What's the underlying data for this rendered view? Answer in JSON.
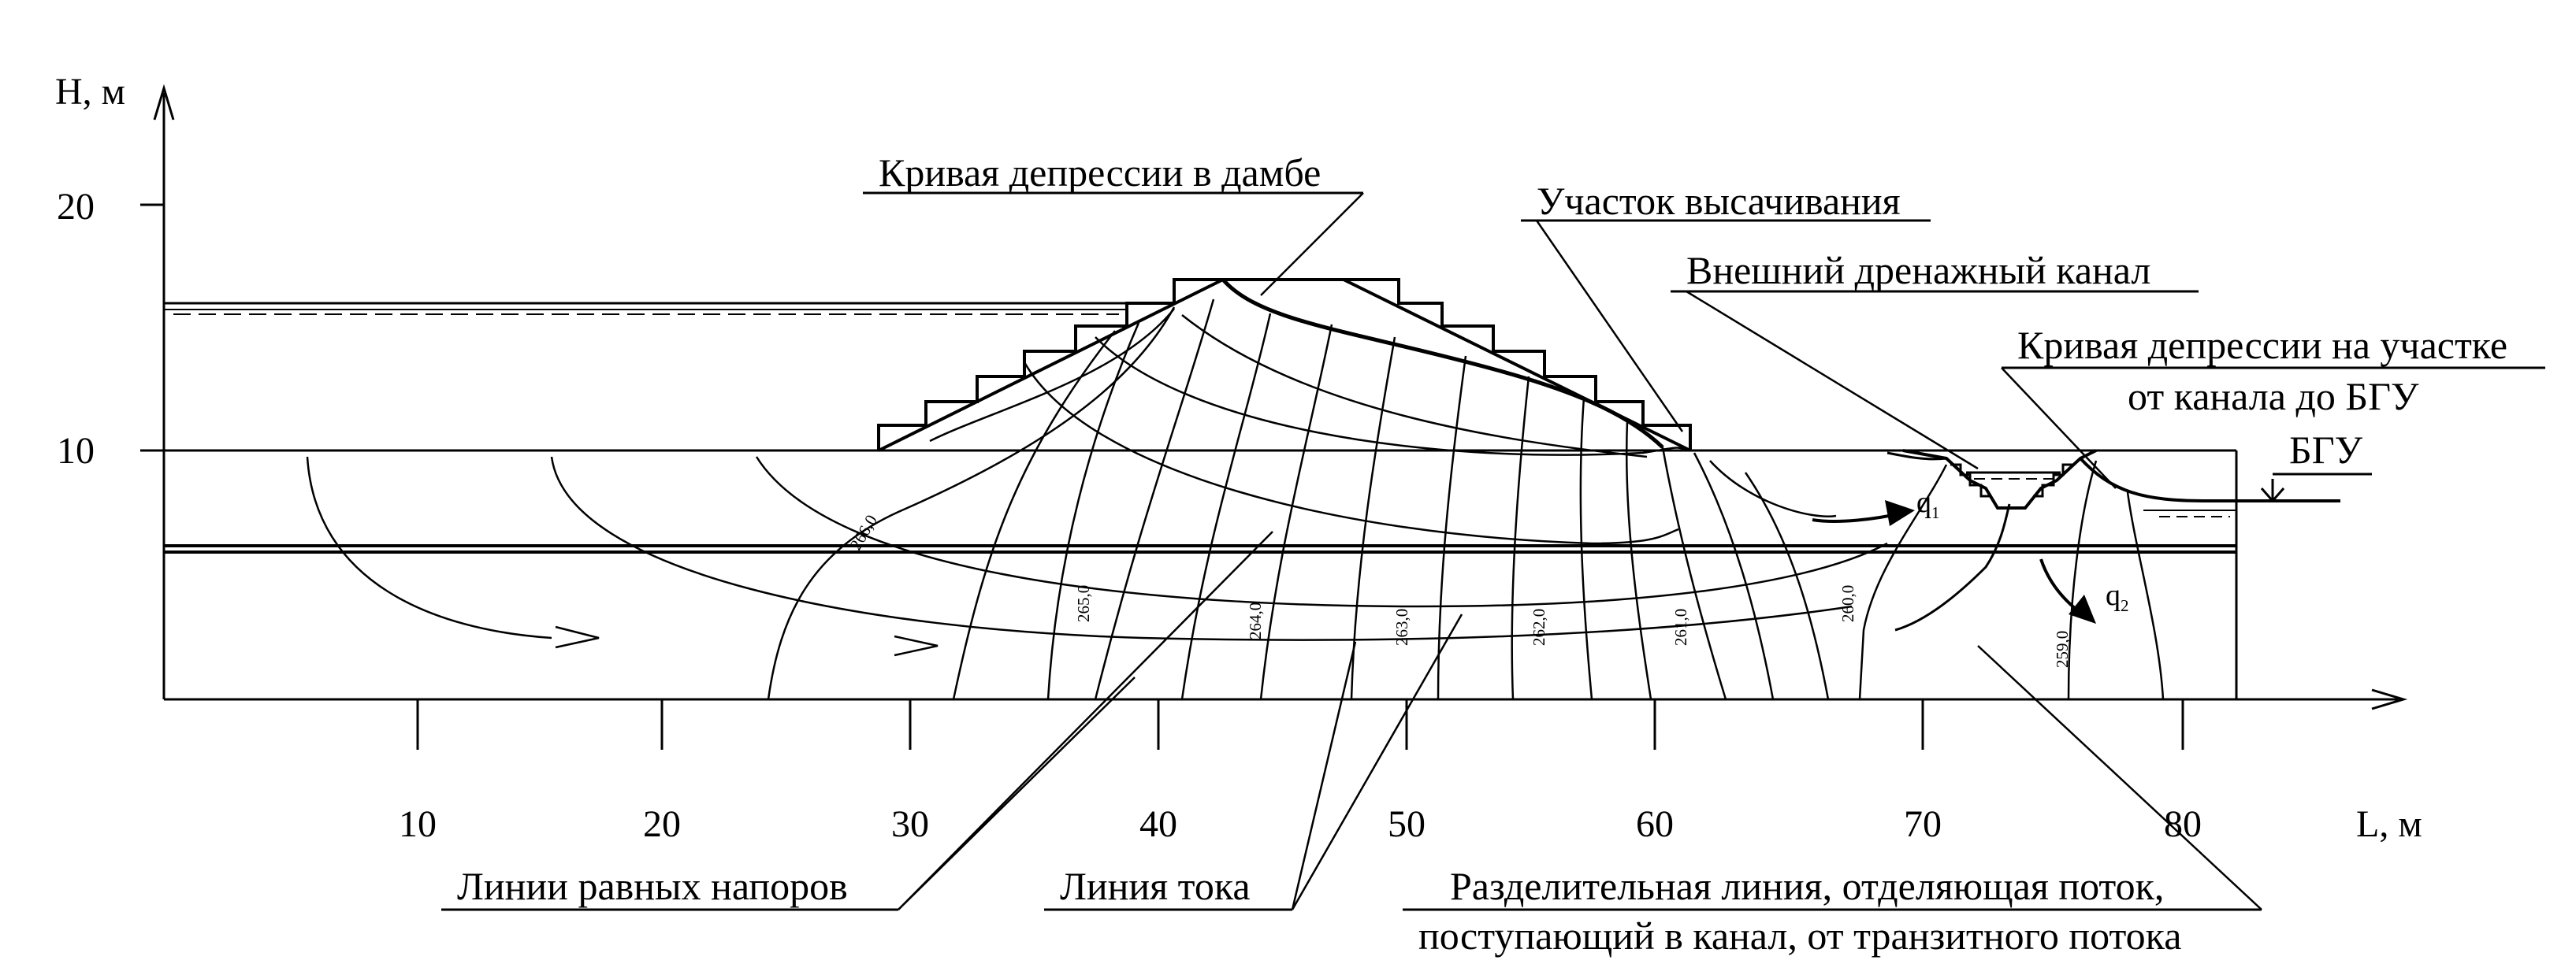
{
  "axes": {
    "y_label": "H, м",
    "x_label": "L, м",
    "y_ticks": [
      "20",
      "10"
    ],
    "x_ticks": [
      "10",
      "20",
      "30",
      "40",
      "50",
      "60",
      "70",
      "80"
    ]
  },
  "callouts": {
    "depression_dam": "Кривая депрессии в дамбе",
    "seepage_zone": "Участок высачивания",
    "drainage_canal": "Внешний дренажный канал",
    "depression_section_1": "Кривая депрессии на участке",
    "depression_section_2": "от канала до БГУ",
    "bgu": "БГУ",
    "equal_head_lines": "Линии равных напоров",
    "flow_line": "Линия тока",
    "dividing_line_1": "Разделительная линия, отделяющая поток,",
    "dividing_line_2": "поступающий в канал, от транзитного потока"
  },
  "head_labels": [
    "266,0",
    "265,0",
    "264,0",
    "263,0",
    "262,0",
    "261,0",
    "260,0",
    "259,0"
  ],
  "flux_labels": {
    "q1": "q",
    "q1_sub": "1",
    "q2": "q",
    "q2_sub": "2"
  }
}
